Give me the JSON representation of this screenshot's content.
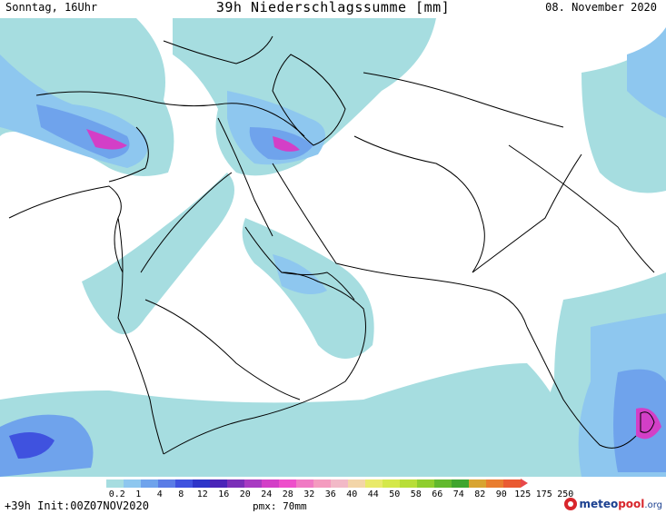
{
  "header": {
    "day_time": "Sonntag, 16Uhr",
    "title": "39h Niederschlagssumme [mm]",
    "date": "08. November 2020"
  },
  "legend": {
    "colors": [
      "#a6dde0",
      "#8ec7ef",
      "#6fa3ec",
      "#5a7ce6",
      "#3f52df",
      "#2e35c9",
      "#4a24b8",
      "#7a2fb8",
      "#a83bc2",
      "#d33fc7",
      "#ee4fcb",
      "#f07ac4",
      "#f49bbf",
      "#f2b9c7",
      "#f3d5a8",
      "#e9ea6a",
      "#d5e84a",
      "#b8de38",
      "#8fce2e",
      "#62b92e",
      "#3fa52f",
      "#d8a431",
      "#e97d2f",
      "#ea5b32"
    ],
    "labels": [
      "0.2",
      "1",
      "4",
      "8",
      "12",
      "16",
      "20",
      "24",
      "28",
      "32",
      "36",
      "40",
      "44",
      "50",
      "58",
      "66",
      "74",
      "82",
      "90",
      "125",
      "175",
      "250"
    ],
    "arrow_color": "#e8484a"
  },
  "footer": {
    "init": "+39h Init:00Z07NOV2020",
    "pmx": "pmx: 70mm"
  },
  "logo": {
    "part1": "meteo",
    "part2": "pool",
    "tld": ".org"
  },
  "colors": {
    "precip_light": "#a6dde0",
    "precip_medium": "#8ec7ef",
    "precip_heavy": "#5a7ce6",
    "precip_intense": "#3f52df",
    "precip_extreme": "#d33fc7",
    "border_line": "#000000"
  }
}
